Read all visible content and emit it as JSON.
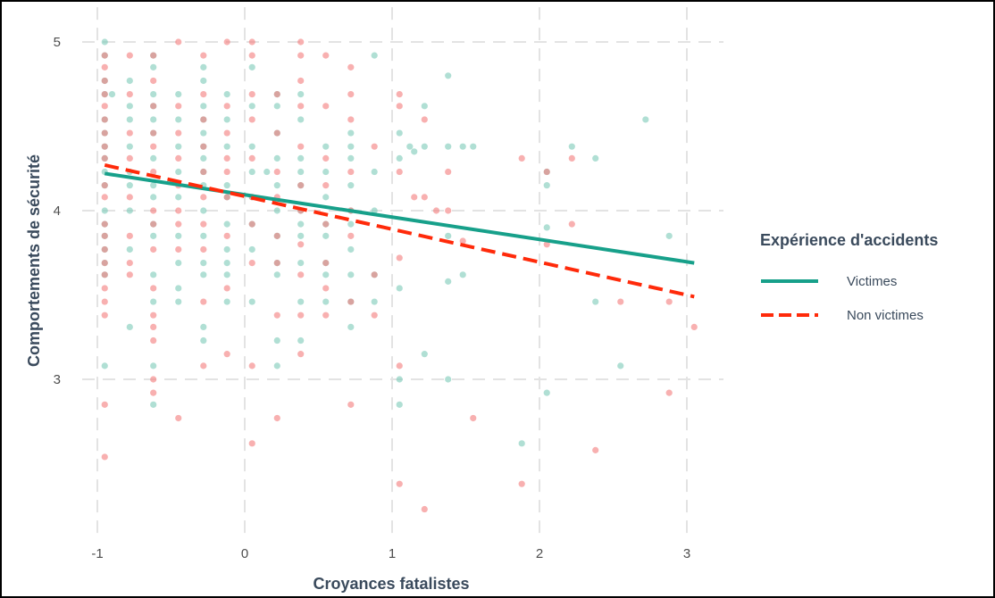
{
  "chart_data": {
    "type": "scatter",
    "title": "",
    "xlabel": "Croyances fatalistes",
    "ylabel": "Comportements de sécurité",
    "xlim": [
      -1.05,
      3.05
    ],
    "ylim": [
      2.1,
      5.1
    ],
    "x_ticks": [
      -1,
      0,
      1,
      2,
      3
    ],
    "y_ticks": [
      3,
      4,
      5
    ],
    "x_tick_labels": [
      "-1",
      "0",
      "1",
      "2",
      "3"
    ],
    "y_tick_labels": [
      "3",
      "4",
      "5"
    ],
    "grid": true,
    "legend": {
      "title": "Expérience d'accidents",
      "position": "right",
      "entries": [
        {
          "label": "Victimes",
          "series": "victimes",
          "line": "solid"
        },
        {
          "label": "Non victimes",
          "series": "non_victimes",
          "line": "dashed"
        }
      ]
    },
    "colors": {
      "victimes": "#17a08a",
      "non_victimes": "#ff2a0a",
      "victimes_points": "#7cc9b8",
      "non_victimes_points": "#f47b7b"
    },
    "fit_lines": [
      {
        "series": "victimes",
        "x": [
          -0.95,
          3.05
        ],
        "y": [
          4.22,
          3.69
        ]
      },
      {
        "series": "non_victimes",
        "x": [
          -0.95,
          3.05
        ],
        "y": [
          4.27,
          3.49
        ]
      }
    ],
    "series": [
      {
        "series": "victimes",
        "points": [
          [
            -0.95,
            5.0
          ],
          [
            -0.95,
            4.92
          ],
          [
            -0.95,
            4.77
          ],
          [
            -0.95,
            4.69
          ],
          [
            -0.95,
            4.54
          ],
          [
            -0.95,
            4.46
          ],
          [
            -0.95,
            4.38
          ],
          [
            -0.95,
            4.31
          ],
          [
            -0.95,
            4.23
          ],
          [
            -0.95,
            4.15
          ],
          [
            -0.95,
            4.0
          ],
          [
            -0.95,
            3.92
          ],
          [
            -0.95,
            3.85
          ],
          [
            -0.95,
            3.77
          ],
          [
            -0.95,
            3.69
          ],
          [
            -0.95,
            3.62
          ],
          [
            -0.95,
            3.08
          ],
          [
            -0.9,
            4.69
          ],
          [
            -0.78,
            4.77
          ],
          [
            -0.78,
            4.62
          ],
          [
            -0.78,
            4.54
          ],
          [
            -0.78,
            4.38
          ],
          [
            -0.78,
            4.23
          ],
          [
            -0.78,
            4.15
          ],
          [
            -0.78,
            4.0
          ],
          [
            -0.78,
            3.77
          ],
          [
            -0.78,
            3.31
          ],
          [
            -0.62,
            4.92
          ],
          [
            -0.62,
            4.85
          ],
          [
            -0.62,
            4.69
          ],
          [
            -0.62,
            4.62
          ],
          [
            -0.62,
            4.54
          ],
          [
            -0.62,
            4.46
          ],
          [
            -0.62,
            4.31
          ],
          [
            -0.62,
            4.15
          ],
          [
            -0.62,
            4.08
          ],
          [
            -0.62,
            3.92
          ],
          [
            -0.62,
            3.85
          ],
          [
            -0.62,
            3.62
          ],
          [
            -0.62,
            3.46
          ],
          [
            -0.62,
            3.08
          ],
          [
            -0.62,
            2.85
          ],
          [
            -0.45,
            4.69
          ],
          [
            -0.45,
            4.54
          ],
          [
            -0.45,
            4.38
          ],
          [
            -0.45,
            4.23
          ],
          [
            -0.45,
            4.08
          ],
          [
            -0.45,
            3.85
          ],
          [
            -0.45,
            3.69
          ],
          [
            -0.45,
            3.54
          ],
          [
            -0.45,
            3.46
          ],
          [
            -0.28,
            4.85
          ],
          [
            -0.28,
            4.77
          ],
          [
            -0.28,
            4.62
          ],
          [
            -0.28,
            4.54
          ],
          [
            -0.28,
            4.46
          ],
          [
            -0.28,
            4.38
          ],
          [
            -0.28,
            4.31
          ],
          [
            -0.28,
            4.23
          ],
          [
            -0.28,
            4.15
          ],
          [
            -0.28,
            4.0
          ],
          [
            -0.28,
            3.85
          ],
          [
            -0.28,
            3.69
          ],
          [
            -0.28,
            3.62
          ],
          [
            -0.28,
            3.31
          ],
          [
            -0.28,
            3.23
          ],
          [
            -0.12,
            4.69
          ],
          [
            -0.12,
            4.54
          ],
          [
            -0.12,
            4.38
          ],
          [
            -0.12,
            4.15
          ],
          [
            -0.12,
            4.08
          ],
          [
            -0.12,
            3.92
          ],
          [
            -0.12,
            3.77
          ],
          [
            -0.12,
            3.69
          ],
          [
            -0.12,
            3.62
          ],
          [
            -0.12,
            3.46
          ],
          [
            0.05,
            4.85
          ],
          [
            0.05,
            4.62
          ],
          [
            0.05,
            4.38
          ],
          [
            0.05,
            4.23
          ],
          [
            0.05,
            4.08
          ],
          [
            0.05,
            3.92
          ],
          [
            0.05,
            3.77
          ],
          [
            0.05,
            3.46
          ],
          [
            0.15,
            4.23
          ],
          [
            0.22,
            4.69
          ],
          [
            0.22,
            4.62
          ],
          [
            0.22,
            4.46
          ],
          [
            0.22,
            4.31
          ],
          [
            0.22,
            4.15
          ],
          [
            0.22,
            4.0
          ],
          [
            0.22,
            3.85
          ],
          [
            0.22,
            3.69
          ],
          [
            0.22,
            3.62
          ],
          [
            0.22,
            3.23
          ],
          [
            0.22,
            3.08
          ],
          [
            0.38,
            4.69
          ],
          [
            0.38,
            4.54
          ],
          [
            0.38,
            4.31
          ],
          [
            0.38,
            4.23
          ],
          [
            0.38,
            4.15
          ],
          [
            0.38,
            4.0
          ],
          [
            0.38,
            3.92
          ],
          [
            0.38,
            3.85
          ],
          [
            0.38,
            3.69
          ],
          [
            0.38,
            3.46
          ],
          [
            0.38,
            3.23
          ],
          [
            0.55,
            4.38
          ],
          [
            0.55,
            4.23
          ],
          [
            0.55,
            4.08
          ],
          [
            0.55,
            3.92
          ],
          [
            0.55,
            3.85
          ],
          [
            0.55,
            3.69
          ],
          [
            0.55,
            3.62
          ],
          [
            0.55,
            3.46
          ],
          [
            0.72,
            4.46
          ],
          [
            0.72,
            4.38
          ],
          [
            0.72,
            4.31
          ],
          [
            0.72,
            4.15
          ],
          [
            0.72,
            4.0
          ],
          [
            0.72,
            3.92
          ],
          [
            0.72,
            3.77
          ],
          [
            0.72,
            3.62
          ],
          [
            0.72,
            3.46
          ],
          [
            0.72,
            3.31
          ],
          [
            0.88,
            4.92
          ],
          [
            0.88,
            4.23
          ],
          [
            0.88,
            4.0
          ],
          [
            0.88,
            3.62
          ],
          [
            0.88,
            3.46
          ],
          [
            1.05,
            4.46
          ],
          [
            1.05,
            4.31
          ],
          [
            1.05,
            3.54
          ],
          [
            1.05,
            3.0
          ],
          [
            1.05,
            2.85
          ],
          [
            1.12,
            4.38
          ],
          [
            1.15,
            4.35
          ],
          [
            1.22,
            4.62
          ],
          [
            1.22,
            4.38
          ],
          [
            1.22,
            3.15
          ],
          [
            1.38,
            4.8
          ],
          [
            1.38,
            4.38
          ],
          [
            1.38,
            3.85
          ],
          [
            1.38,
            3.58
          ],
          [
            1.38,
            3.0
          ],
          [
            1.48,
            4.38
          ],
          [
            1.48,
            3.62
          ],
          [
            1.55,
            4.38
          ],
          [
            1.88,
            2.62
          ],
          [
            2.05,
            4.23
          ],
          [
            2.05,
            4.15
          ],
          [
            2.05,
            3.9
          ],
          [
            2.05,
            2.92
          ],
          [
            2.22,
            4.38
          ],
          [
            2.38,
            4.31
          ],
          [
            2.38,
            3.46
          ],
          [
            2.55,
            3.08
          ],
          [
            2.72,
            4.54
          ],
          [
            2.88,
            3.85
          ]
        ]
      },
      {
        "series": "non_victimes",
        "points": [
          [
            -0.95,
            4.92
          ],
          [
            -0.95,
            4.85
          ],
          [
            -0.95,
            4.77
          ],
          [
            -0.95,
            4.69
          ],
          [
            -0.95,
            4.62
          ],
          [
            -0.95,
            4.54
          ],
          [
            -0.95,
            4.46
          ],
          [
            -0.95,
            4.38
          ],
          [
            -0.95,
            4.31
          ],
          [
            -0.95,
            4.15
          ],
          [
            -0.95,
            4.08
          ],
          [
            -0.95,
            3.92
          ],
          [
            -0.95,
            3.85
          ],
          [
            -0.95,
            3.77
          ],
          [
            -0.95,
            3.69
          ],
          [
            -0.95,
            3.62
          ],
          [
            -0.95,
            3.54
          ],
          [
            -0.95,
            3.46
          ],
          [
            -0.95,
            3.38
          ],
          [
            -0.95,
            2.85
          ],
          [
            -0.95,
            2.54
          ],
          [
            -0.78,
            4.92
          ],
          [
            -0.78,
            4.69
          ],
          [
            -0.78,
            4.46
          ],
          [
            -0.78,
            4.31
          ],
          [
            -0.78,
            4.08
          ],
          [
            -0.78,
            3.85
          ],
          [
            -0.78,
            3.69
          ],
          [
            -0.78,
            3.62
          ],
          [
            -0.62,
            4.92
          ],
          [
            -0.62,
            4.77
          ],
          [
            -0.62,
            4.62
          ],
          [
            -0.62,
            4.46
          ],
          [
            -0.62,
            4.38
          ],
          [
            -0.62,
            4.23
          ],
          [
            -0.62,
            4.0
          ],
          [
            -0.62,
            3.92
          ],
          [
            -0.62,
            3.77
          ],
          [
            -0.62,
            3.54
          ],
          [
            -0.62,
            3.38
          ],
          [
            -0.62,
            3.31
          ],
          [
            -0.62,
            3.23
          ],
          [
            -0.62,
            3.0
          ],
          [
            -0.62,
            2.92
          ],
          [
            -0.45,
            5.0
          ],
          [
            -0.45,
            4.62
          ],
          [
            -0.45,
            4.46
          ],
          [
            -0.45,
            4.31
          ],
          [
            -0.45,
            4.15
          ],
          [
            -0.45,
            4.0
          ],
          [
            -0.45,
            3.92
          ],
          [
            -0.45,
            3.77
          ],
          [
            -0.45,
            2.77
          ],
          [
            -0.28,
            4.92
          ],
          [
            -0.28,
            4.69
          ],
          [
            -0.28,
            4.54
          ],
          [
            -0.28,
            4.38
          ],
          [
            -0.28,
            4.23
          ],
          [
            -0.28,
            4.08
          ],
          [
            -0.28,
            3.92
          ],
          [
            -0.28,
            3.77
          ],
          [
            -0.28,
            3.46
          ],
          [
            -0.28,
            3.08
          ],
          [
            -0.12,
            5.0
          ],
          [
            -0.12,
            4.62
          ],
          [
            -0.12,
            4.46
          ],
          [
            -0.12,
            4.31
          ],
          [
            -0.12,
            4.23
          ],
          [
            -0.12,
            4.08
          ],
          [
            -0.12,
            3.85
          ],
          [
            -0.12,
            3.54
          ],
          [
            -0.12,
            3.15
          ],
          [
            0.05,
            5.0
          ],
          [
            0.05,
            4.92
          ],
          [
            0.05,
            4.69
          ],
          [
            0.05,
            4.54
          ],
          [
            0.05,
            4.31
          ],
          [
            0.05,
            4.08
          ],
          [
            0.05,
            3.92
          ],
          [
            0.05,
            3.69
          ],
          [
            0.05,
            3.08
          ],
          [
            0.05,
            2.62
          ],
          [
            0.22,
            4.69
          ],
          [
            0.22,
            4.46
          ],
          [
            0.22,
            4.23
          ],
          [
            0.22,
            4.08
          ],
          [
            0.22,
            3.85
          ],
          [
            0.22,
            3.69
          ],
          [
            0.22,
            3.38
          ],
          [
            0.22,
            2.77
          ],
          [
            0.38,
            5.0
          ],
          [
            0.38,
            4.92
          ],
          [
            0.38,
            4.77
          ],
          [
            0.38,
            4.62
          ],
          [
            0.38,
            4.38
          ],
          [
            0.38,
            4.15
          ],
          [
            0.38,
            4.0
          ],
          [
            0.38,
            3.8
          ],
          [
            0.38,
            3.62
          ],
          [
            0.38,
            3.38
          ],
          [
            0.38,
            3.15
          ],
          [
            0.55,
            4.92
          ],
          [
            0.55,
            4.62
          ],
          [
            0.55,
            4.31
          ],
          [
            0.55,
            4.15
          ],
          [
            0.55,
            3.92
          ],
          [
            0.55,
            3.69
          ],
          [
            0.55,
            3.54
          ],
          [
            0.55,
            3.38
          ],
          [
            0.72,
            4.85
          ],
          [
            0.72,
            4.69
          ],
          [
            0.72,
            4.54
          ],
          [
            0.72,
            4.23
          ],
          [
            0.72,
            4.0
          ],
          [
            0.72,
            3.85
          ],
          [
            0.72,
            3.46
          ],
          [
            0.72,
            2.85
          ],
          [
            0.88,
            4.38
          ],
          [
            0.88,
            3.62
          ],
          [
            0.88,
            3.38
          ],
          [
            1.05,
            4.69
          ],
          [
            1.05,
            4.62
          ],
          [
            1.05,
            4.23
          ],
          [
            1.05,
            3.72
          ],
          [
            1.05,
            3.08
          ],
          [
            1.05,
            2.38
          ],
          [
            1.15,
            4.08
          ],
          [
            1.22,
            4.54
          ],
          [
            1.22,
            4.08
          ],
          [
            1.22,
            2.23
          ],
          [
            1.3,
            4.0
          ],
          [
            1.38,
            4.23
          ],
          [
            1.38,
            4.0
          ],
          [
            1.48,
            3.82
          ],
          [
            1.55,
            2.77
          ],
          [
            1.88,
            4.31
          ],
          [
            1.88,
            2.38
          ],
          [
            2.05,
            4.23
          ],
          [
            2.05,
            3.8
          ],
          [
            2.22,
            4.31
          ],
          [
            2.22,
            3.92
          ],
          [
            2.38,
            2.58
          ],
          [
            2.55,
            3.46
          ],
          [
            2.88,
            3.46
          ],
          [
            2.88,
            2.92
          ],
          [
            3.05,
            3.31
          ]
        ]
      }
    ]
  }
}
